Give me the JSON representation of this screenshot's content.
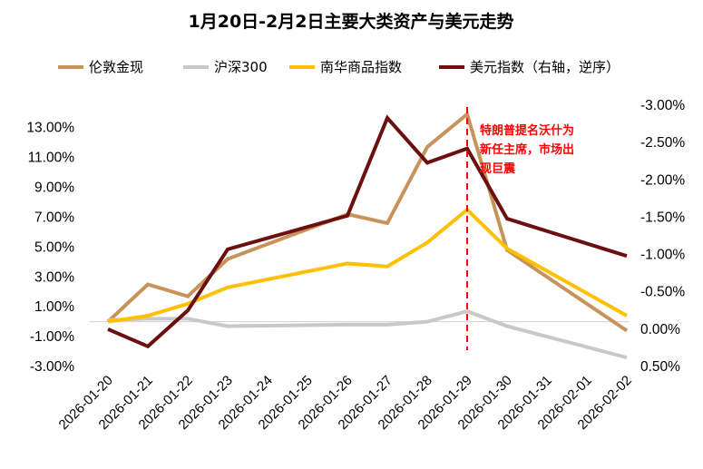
{
  "chart_data": {
    "type": "line",
    "title": "1月20日-2月2日主要大类资产与美元走势",
    "categories": [
      "2026-01-20",
      "2026-01-21",
      "2026-01-22",
      "2026-01-23",
      "2026-01-24",
      "2026-01-25",
      "2026-01-26",
      "2026-01-27",
      "2026-01-28",
      "2026-01-29",
      "2026-01-30",
      "2026-01-31",
      "2026-02-01",
      "2026-02-02"
    ],
    "left_axis": {
      "ticks": [
        "13.00%",
        "11.00%",
        "9.00%",
        "7.00%",
        "5.00%",
        "3.00%",
        "1.00%",
        "-1.00%",
        "-3.00%"
      ],
      "ylim": [
        -3,
        14.5
      ]
    },
    "right_axis": {
      "ticks": [
        "-3.00%",
        "-2.50%",
        "-2.00%",
        "-1.50%",
        "-1.00%",
        "-0.50%",
        "0.00%",
        "0.50%"
      ],
      "ylim": [
        -3.0,
        0.5
      ],
      "reversed": true
    },
    "series": [
      {
        "name": "伦敦金现",
        "axis": "left",
        "color": "#c8935a",
        "values": [
          0.0,
          2.5,
          1.7,
          4.2,
          null,
          null,
          7.2,
          6.6,
          11.7,
          13.9,
          4.8,
          null,
          null,
          -0.6
        ]
      },
      {
        "name": "沪深300",
        "axis": "left",
        "color": "#c8c8c8",
        "values": [
          0.1,
          0.2,
          0.2,
          -0.3,
          null,
          null,
          -0.2,
          -0.2,
          0.0,
          0.7,
          -0.3,
          null,
          null,
          -2.4
        ]
      },
      {
        "name": "南华商品指数",
        "axis": "left",
        "color": "#ffc000",
        "values": [
          0.0,
          0.4,
          1.2,
          2.3,
          null,
          null,
          3.9,
          3.7,
          5.3,
          7.5,
          4.9,
          null,
          null,
          0.4
        ]
      },
      {
        "name": "美元指数（右轴，逆序）",
        "axis": "right",
        "color": "#6b0f0f",
        "values": [
          0.0,
          0.23,
          -0.25,
          -1.07,
          null,
          null,
          -1.52,
          -2.83,
          -2.23,
          -2.42,
          -1.48,
          null,
          null,
          -0.98
        ]
      }
    ],
    "annotation": {
      "text_lines": [
        "特朗普提名沃什为",
        "新任主席，市场出",
        "现巨震"
      ],
      "at_category": "2026-01-29",
      "color": "#ff0000"
    },
    "legend_placement": "top",
    "grid": false
  }
}
